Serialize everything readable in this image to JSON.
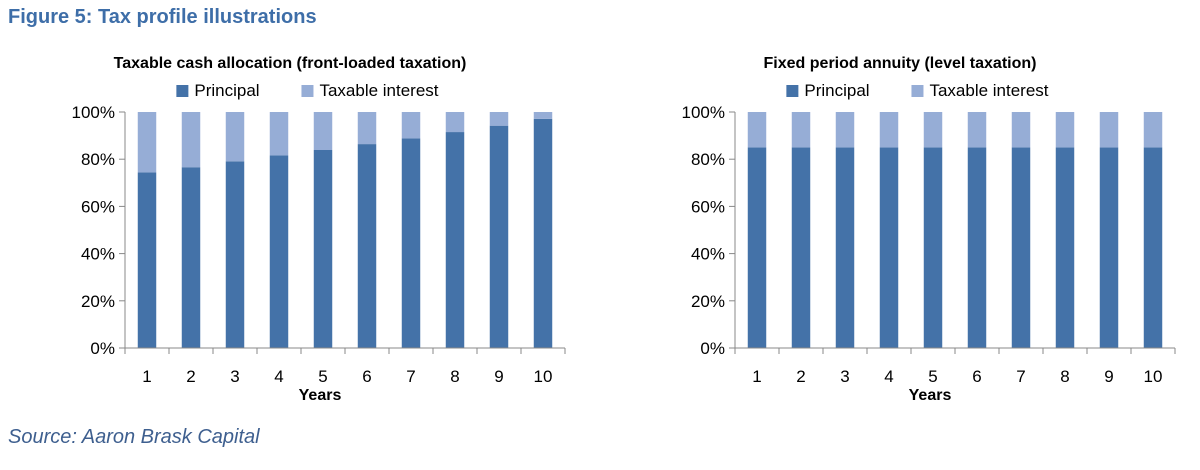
{
  "figure_title": "Figure 5: Tax profile illustrations",
  "source": "Source: Aaron Brask Capital",
  "colors": {
    "principal": "#4472a8",
    "interest": "#96add6",
    "axis": "#888888",
    "title": "#3e6ea8"
  },
  "chart_data": [
    {
      "type": "bar",
      "stacked": true,
      "title": "Taxable cash allocation (front-loaded taxation)",
      "xlabel": "Years",
      "ylabel": "",
      "ylim": [
        0,
        100
      ],
      "yticks": [
        "0%",
        "20%",
        "40%",
        "60%",
        "80%",
        "100%"
      ],
      "legend": "top",
      "categories": [
        "1",
        "2",
        "3",
        "4",
        "5",
        "6",
        "7",
        "8",
        "9",
        "10"
      ],
      "series": [
        {
          "name": "Principal",
          "values": [
            74.4,
            76.6,
            79.1,
            81.6,
            83.9,
            86.4,
            88.8,
            91.5,
            94.2,
            97.1
          ]
        },
        {
          "name": "Taxable interest",
          "values": [
            25.6,
            23.4,
            20.9,
            18.4,
            16.1,
            13.6,
            11.2,
            8.5,
            5.8,
            2.9
          ]
        }
      ]
    },
    {
      "type": "bar",
      "stacked": true,
      "title": "Fixed period annuity (level taxation)",
      "xlabel": "Years",
      "ylabel": "",
      "ylim": [
        0,
        100
      ],
      "yticks": [
        "0%",
        "20%",
        "40%",
        "60%",
        "80%",
        "100%"
      ],
      "legend": "top",
      "categories": [
        "1",
        "2",
        "3",
        "4",
        "5",
        "6",
        "7",
        "8",
        "9",
        "10"
      ],
      "series": [
        {
          "name": "Principal",
          "values": [
            85,
            85,
            85,
            85,
            85,
            85,
            85,
            85,
            85,
            85
          ]
        },
        {
          "name": "Taxable interest",
          "values": [
            15,
            15,
            15,
            15,
            15,
            15,
            15,
            15,
            15,
            15
          ]
        }
      ]
    }
  ]
}
